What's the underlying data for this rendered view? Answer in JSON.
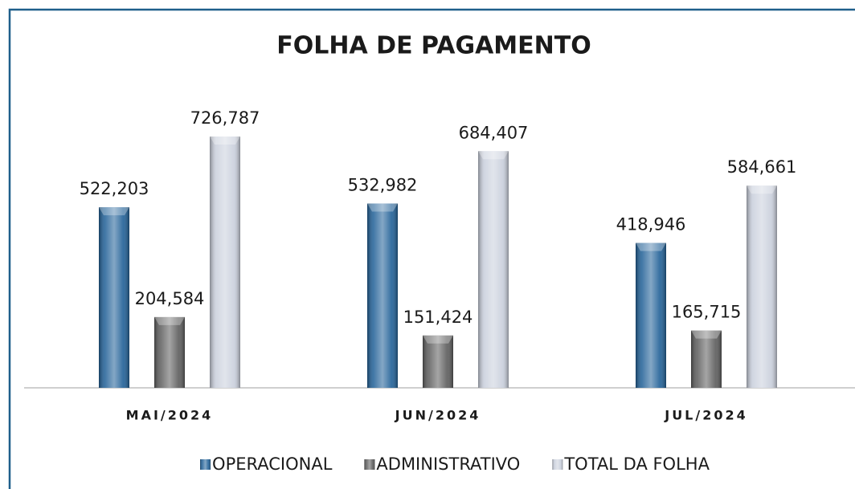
{
  "chart_data": {
    "type": "bar",
    "title": "FOLHA DE PAGAMENTO",
    "categories": [
      "MAI/2024",
      "JUN/2024",
      "JUL/2024"
    ],
    "series": [
      {
        "name": "OPERACIONAL",
        "color": "#1f5f96",
        "values": [
          522203,
          532982,
          418946
        ],
        "value_labels": [
          "522,203",
          "532,982",
          "418,946"
        ]
      },
      {
        "name": "ADMINISTRATIVO",
        "color": "#5b5b5b",
        "values": [
          204584,
          151424,
          165715
        ],
        "value_labels": [
          "204,584",
          "151,424",
          "165,715"
        ]
      },
      {
        "name": "TOTAL DA FOLHA",
        "color": "#c9cfdc",
        "values": [
          726787,
          684407,
          584661
        ],
        "value_labels": [
          "726,787",
          "684,407",
          "584,661"
        ]
      }
    ]
  }
}
